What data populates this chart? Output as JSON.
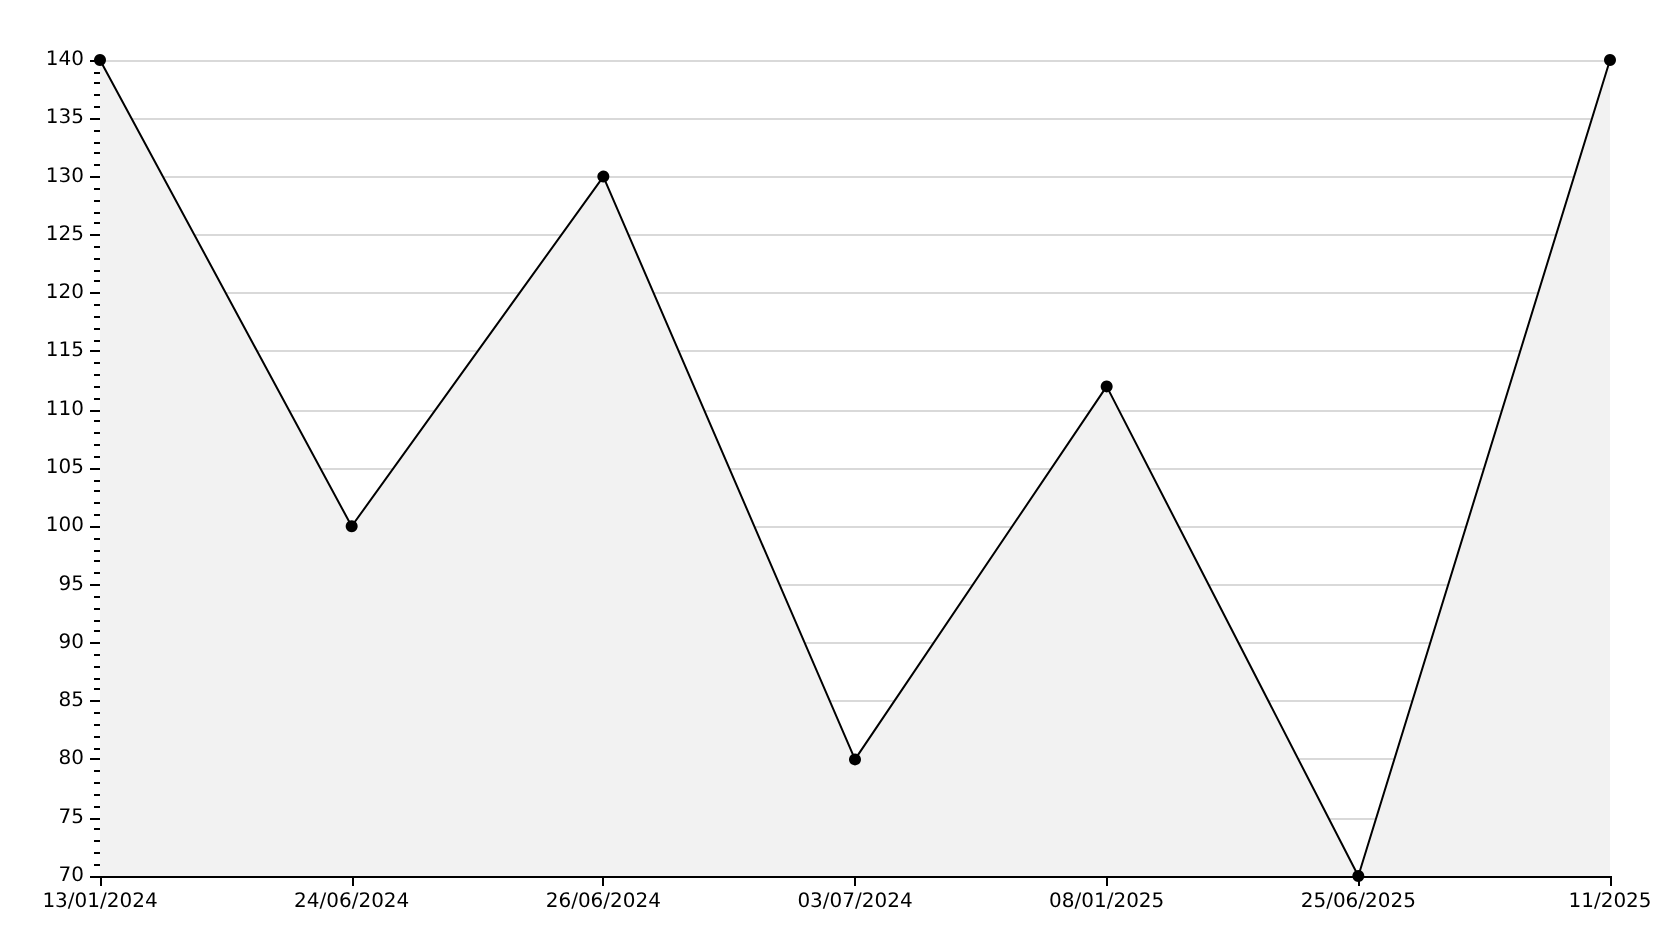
{
  "chart_data": {
    "type": "area",
    "categories": [
      "13/01/2024",
      "24/06/2024",
      "26/06/2024",
      "03/07/2024",
      "08/01/2025",
      "25/06/2025",
      "11/2025"
    ],
    "series": [
      {
        "color": "#000000",
        "values": [
          140,
          100,
          130,
          80,
          112,
          70,
          140
        ]
      }
    ],
    "ylim": [
      70,
      140
    ],
    "yticks": [
      70,
      75,
      80,
      85,
      90,
      95,
      100,
      105,
      110,
      115,
      120,
      125,
      130,
      135,
      140
    ],
    "grid": "y",
    "marker": "circle",
    "line_style": "solid"
  }
}
